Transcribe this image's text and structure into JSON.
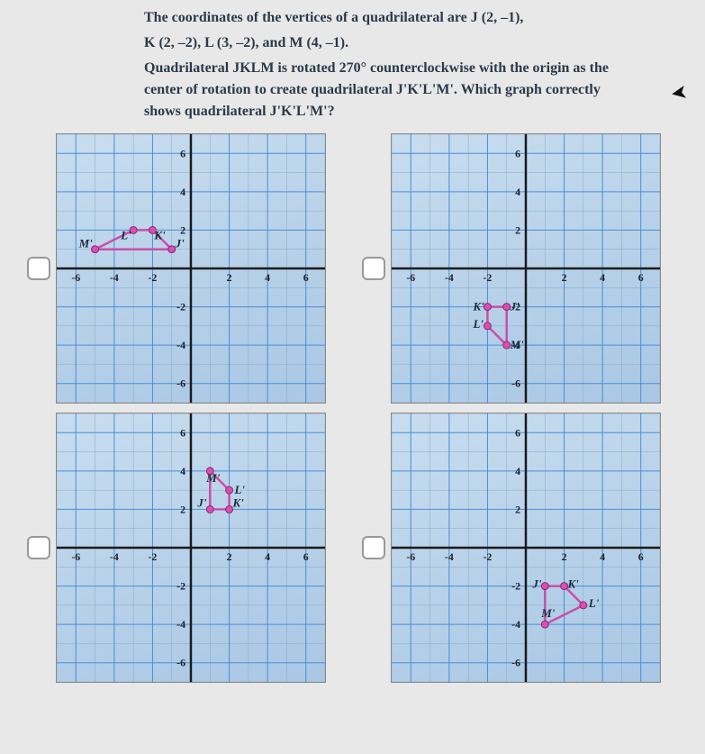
{
  "question": {
    "line1": "The coordinates of the vertices of a quadrilateral are J (2, –1),",
    "line2": "K (2, –2), L (3, –2), and M (4, –1).",
    "line3": "Quadrilateral JKLM is rotated 270° counterclockwise with the origin as the center of rotation to create quadrilateral J'K'L'M'. Which graph correctly shows quadrilateral J'K'L'M'?"
  },
  "grid": {
    "min": -7,
    "max": 7,
    "ticks": [
      -6,
      -4,
      -2,
      2,
      4,
      6
    ],
    "yticks": [
      -6,
      -4,
      -2,
      2,
      4,
      6
    ],
    "major_ticks": [
      -6,
      -4,
      -2,
      0,
      2,
      4,
      6
    ],
    "blue_lines": [
      -6,
      -4,
      -2,
      0,
      2,
      4,
      6
    ],
    "colors": {
      "fine_grid": "#8aa8c4",
      "blue_grid": "#4a8fd8",
      "axis": "#1a1a1a",
      "point_fill": "#d94fb2",
      "point_stroke": "#8a2a6a",
      "shape_stroke": "#c94fa8",
      "tick_text": "#222"
    },
    "tick_fontsize": 12,
    "point_radius": 4
  },
  "options": [
    {
      "id": "A",
      "points": {
        "J'": [
          -1,
          1
        ],
        "K'": [
          -2,
          2
        ],
        "L'": [
          -3,
          2
        ],
        "M'": [
          -5,
          1
        ]
      },
      "label_offsets": {
        "J'": [
          4,
          -2
        ],
        "K'": [
          2,
          10
        ],
        "L'": [
          -14,
          10
        ],
        "M'": [
          -18,
          -2
        ]
      },
      "poly": [
        [
          -1,
          1
        ],
        [
          -2,
          2
        ],
        [
          -3,
          2
        ],
        [
          -5,
          1
        ]
      ]
    },
    {
      "id": "B",
      "points": {
        "J'": [
          -1,
          -2
        ],
        "K'": [
          -2,
          -2
        ],
        "L'": [
          -2,
          -3
        ],
        "M'": [
          -1,
          -4
        ]
      },
      "label_offsets": {
        "J'": [
          4,
          4
        ],
        "K'": [
          -16,
          4
        ],
        "L'": [
          -16,
          2
        ],
        "M'": [
          4,
          4
        ]
      },
      "poly": [
        [
          -1,
          -2
        ],
        [
          -2,
          -2
        ],
        [
          -2,
          -3
        ],
        [
          -1,
          -4
        ]
      ]
    },
    {
      "id": "C",
      "points": {
        "J'": [
          1,
          2
        ],
        "K'": [
          2,
          2
        ],
        "L'": [
          2,
          3
        ],
        "M'": [
          1,
          4
        ]
      },
      "label_offsets": {
        "J'": [
          -14,
          -3
        ],
        "K'": [
          4,
          -3
        ],
        "L'": [
          6,
          4
        ],
        "M'": [
          -4,
          12
        ]
      },
      "poly": [
        [
          1,
          2
        ],
        [
          2,
          2
        ],
        [
          2,
          3
        ],
        [
          1,
          4
        ]
      ]
    },
    {
      "id": "D",
      "points": {
        "J'": [
          1,
          -2
        ],
        "K'": [
          2,
          -2
        ],
        "L'": [
          3,
          -3
        ],
        "M'": [
          1,
          -4
        ]
      },
      "label_offsets": {
        "J'": [
          -14,
          2
        ],
        "K'": [
          4,
          2
        ],
        "L'": [
          6,
          2
        ],
        "M'": [
          -4,
          -8
        ]
      },
      "poly": [
        [
          1,
          -2
        ],
        [
          2,
          -2
        ],
        [
          3,
          -3
        ],
        [
          1,
          -4
        ]
      ]
    }
  ]
}
